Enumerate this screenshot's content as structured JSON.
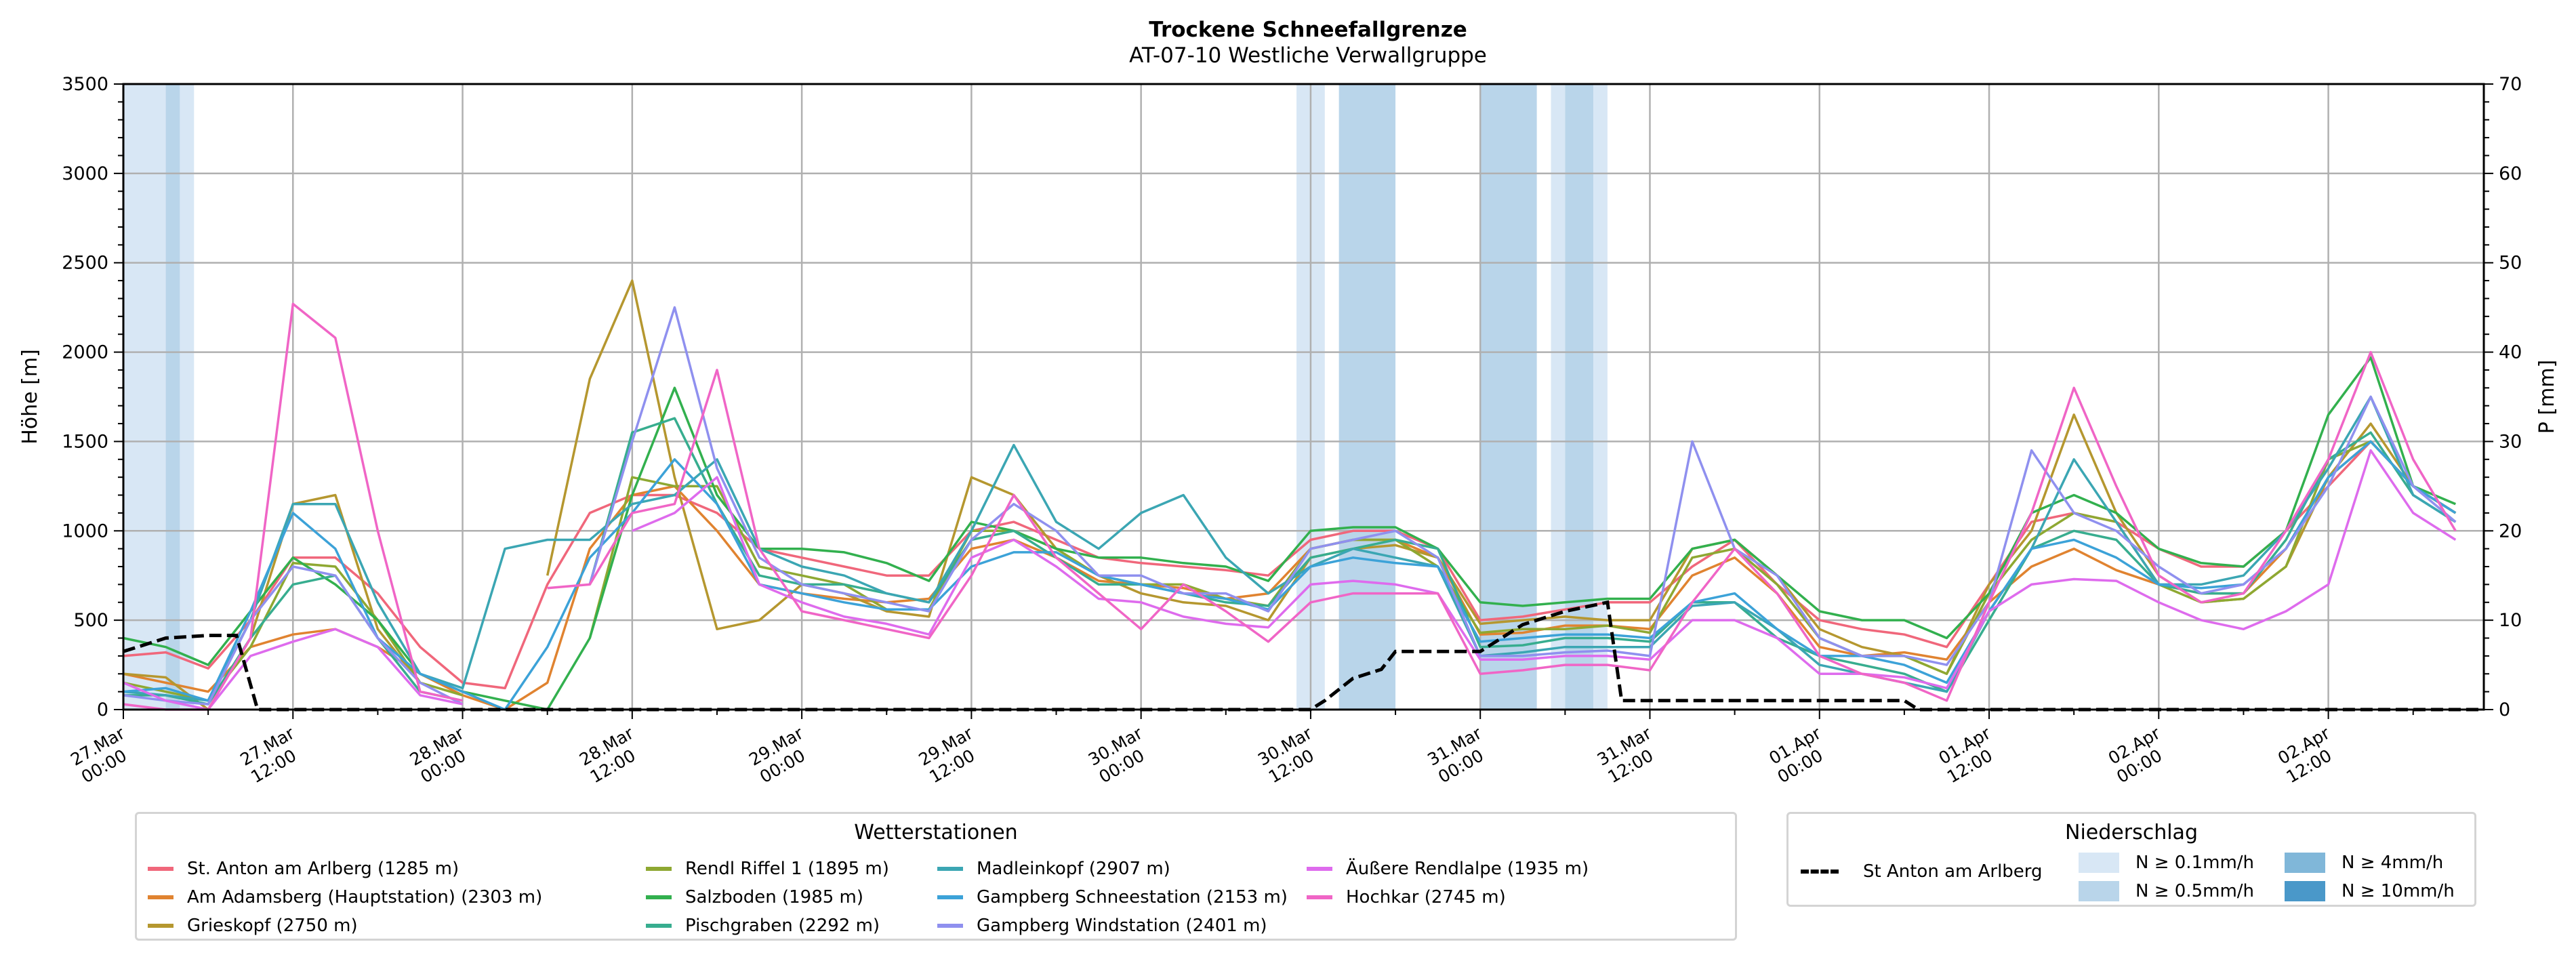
{
  "chart_data": {
    "type": "line",
    "title": "Trockene Schneefallgrenze",
    "subtitle": "AT-07-10 Westliche Verwallgruppe",
    "ylabel": "Höhe [m]",
    "ylabel_right": "P [mm]",
    "ylim": [
      0,
      3500
    ],
    "ylim_right": [
      0,
      70
    ],
    "yticks": [
      "0",
      "500",
      "1000",
      "1500",
      "2000",
      "2500",
      "3000",
      "3500"
    ],
    "yticks_right": [
      "0",
      "10",
      "20",
      "30",
      "40",
      "50",
      "60",
      "70"
    ],
    "grid": true,
    "x_unit": "hours since 27.Mar 00:00",
    "xlim": [
      0,
      167
    ],
    "x_step": 3,
    "xtick_labels": [
      [
        "27.Mar",
        "00:00"
      ],
      [
        "27.Mar",
        "12:00"
      ],
      [
        "28.Mar",
        "00:00"
      ],
      [
        "28.Mar",
        "12:00"
      ],
      [
        "29.Mar",
        "00:00"
      ],
      [
        "29.Mar",
        "12:00"
      ],
      [
        "30.Mar",
        "00:00"
      ],
      [
        "30.Mar",
        "12:00"
      ],
      [
        "31.Mar",
        "00:00"
      ],
      [
        "31.Mar",
        "12:00"
      ],
      [
        "01.Apr",
        "00:00"
      ],
      [
        "01.Apr",
        "12:00"
      ],
      [
        "02.Apr",
        "00:00"
      ],
      [
        "02.Apr",
        "12:00"
      ]
    ],
    "legend_title": "Wetterstationen",
    "legend_placement": "bottom-left",
    "series": [
      {
        "name": "St. Anton am Arlberg (1285 m)",
        "color": "#f0677b",
        "values": [
          300,
          320,
          230,
          500,
          850,
          850,
          650,
          350,
          150,
          120,
          700,
          1100,
          1200,
          1200,
          1100,
          900,
          850,
          800,
          750,
          750,
          1000,
          1050,
          950,
          850,
          820,
          800,
          780,
          750,
          950,
          1000,
          1000,
          900,
          500,
          520,
          560,
          600,
          600,
          800,
          950,
          700,
          500,
          450,
          420,
          350,
          700,
          1050,
          1100,
          1050,
          900,
          800,
          800,
          1000,
          1250,
          1500,
          1250,
          1100
        ]
      },
      {
        "name": "Am Adamsberg (Hauptstation) (2303 m)",
        "color": "#e08330",
        "values": [
          200,
          150,
          100,
          350,
          420,
          450,
          350,
          200,
          80,
          0,
          150,
          900,
          1200,
          1250,
          1000,
          700,
          650,
          620,
          600,
          620,
          900,
          950,
          850,
          720,
          700,
          680,
          620,
          650,
          900,
          950,
          950,
          850,
          420,
          430,
          470,
          470,
          450,
          750,
          850,
          650,
          350,
          300,
          320,
          280,
          600,
          800,
          900,
          780,
          700,
          650,
          650,
          900,
          1300,
          1500,
          1250,
          1100
        ]
      },
      {
        "name": "Grieskopf (2750 m)",
        "color": "#b5972f",
        "values": [
          200,
          180,
          0,
          400,
          1150,
          1200,
          450,
          150,
          null,
          null,
          750,
          1850,
          2400,
          1300,
          450,
          500,
          700,
          650,
          550,
          520,
          1300,
          1200,
          900,
          750,
          650,
          600,
          580,
          500,
          850,
          900,
          920,
          850,
          480,
          500,
          520,
          500,
          500,
          900,
          950,
          750,
          450,
          350,
          300,
          200,
          700,
          1000,
          1650,
          1100,
          750,
          600,
          620,
          800,
          1300,
          1600,
          1250,
          1100
        ]
      },
      {
        "name": "Rendl Riffel 1 (1895 m)",
        "color": "#8ea832",
        "values": [
          150,
          100,
          50,
          350,
          820,
          800,
          500,
          150,
          80,
          null,
          null,
          400,
          1300,
          1250,
          1250,
          800,
          750,
          700,
          560,
          560,
          1000,
          1000,
          900,
          750,
          700,
          700,
          620,
          580,
          900,
          950,
          950,
          800,
          430,
          450,
          450,
          470,
          430,
          850,
          900,
          700,
          400,
          300,
          300,
          200,
          650,
          950,
          1100,
          1050,
          700,
          600,
          620,
          800,
          1400,
          1500,
          1250,
          1100
        ]
      },
      {
        "name": "Salzboden (1985 m)",
        "color": "#32b04e",
        "values": [
          400,
          350,
          250,
          550,
          850,
          700,
          500,
          200,
          100,
          50,
          0,
          400,
          1200,
          1800,
          1200,
          900,
          900,
          880,
          820,
          720,
          1050,
          1000,
          900,
          850,
          850,
          820,
          800,
          720,
          1000,
          1020,
          1020,
          900,
          600,
          580,
          600,
          620,
          620,
          900,
          950,
          750,
          550,
          500,
          500,
          400,
          650,
          1100,
          1200,
          1100,
          900,
          820,
          800,
          1000,
          1650,
          1970,
          1250,
          1150
        ]
      },
      {
        "name": "Pischgraben (2292 m)",
        "color": "#37ad8f",
        "values": [
          80,
          80,
          30,
          400,
          700,
          750,
          400,
          100,
          50,
          null,
          null,
          700,
          1550,
          1630,
          1150,
          750,
          700,
          700,
          650,
          600,
          950,
          1000,
          850,
          700,
          700,
          650,
          600,
          580,
          850,
          900,
          950,
          900,
          350,
          360,
          400,
          400,
          380,
          600,
          600,
          400,
          300,
          250,
          200,
          100,
          500,
          900,
          1000,
          950,
          700,
          650,
          650,
          950,
          1400,
          1550,
          1200,
          1050
        ]
      },
      {
        "name": "Madleinkopf (2907 m)",
        "color": "#3ba6b3",
        "values": [
          100,
          80,
          50,
          500,
          1150,
          1150,
          600,
          200,
          120,
          900,
          950,
          950,
          1150,
          1200,
          1400,
          900,
          800,
          750,
          650,
          600,
          1000,
          1480,
          1050,
          900,
          1100,
          1200,
          850,
          650,
          800,
          900,
          850,
          800,
          300,
          320,
          350,
          350,
          350,
          580,
          600,
          450,
          250,
          200,
          150,
          100,
          550,
          900,
          1400,
          1050,
          700,
          700,
          750,
          1000,
          1350,
          1750,
          1200,
          1050
        ]
      },
      {
        "name": "Gampberg Schneestation (2153 m)",
        "color": "#3ca2d8",
        "values": [
          100,
          120,
          50,
          550,
          1100,
          900,
          400,
          200,
          100,
          0,
          350,
          850,
          1100,
          1400,
          1150,
          700,
          650,
          600,
          560,
          560,
          800,
          880,
          880,
          750,
          700,
          650,
          620,
          560,
          800,
          850,
          820,
          800,
          380,
          400,
          420,
          420,
          400,
          600,
          650,
          450,
          300,
          300,
          250,
          150,
          550,
          900,
          950,
          850,
          700,
          680,
          700,
          900,
          1300,
          1500,
          1250,
          1100
        ]
      },
      {
        "name": "Gampberg Windstation (2401 m)",
        "color": "#8f90ef",
        "values": [
          80,
          50,
          30,
          500,
          800,
          750,
          400,
          150,
          30,
          null,
          null,
          700,
          1500,
          2250,
          1350,
          850,
          700,
          650,
          600,
          550,
          950,
          1150,
          1000,
          750,
          750,
          650,
          650,
          550,
          900,
          950,
          1000,
          850,
          300,
          300,
          320,
          330,
          300,
          1500,
          900,
          750,
          400,
          300,
          300,
          250,
          600,
          1450,
          1100,
          1000,
          800,
          650,
          700,
          900,
          1250,
          1750,
          1250,
          1050
        ]
      },
      {
        "name": "Äußere Rendlalpe (1935 m)",
        "color": "#de6bed",
        "values": [
          150,
          50,
          0,
          300,
          380,
          450,
          350,
          80,
          30,
          null,
          null,
          null,
          1000,
          1100,
          1300,
          700,
          600,
          520,
          480,
          420,
          850,
          950,
          800,
          620,
          600,
          520,
          480,
          460,
          700,
          720,
          700,
          650,
          280,
          280,
          300,
          300,
          280,
          500,
          500,
          400,
          200,
          200,
          180,
          120,
          550,
          700,
          730,
          720,
          600,
          500,
          450,
          550,
          700,
          1450,
          1100,
          950
        ]
      },
      {
        "name": "Hochkar (2745 m)",
        "color": "#f065c6",
        "values": [
          30,
          0,
          0,
          400,
          2270,
          2080,
          1000,
          100,
          50,
          null,
          680,
          700,
          1100,
          1150,
          1900,
          900,
          550,
          500,
          450,
          400,
          750,
          1200,
          850,
          650,
          450,
          700,
          550,
          380,
          600,
          650,
          650,
          650,
          200,
          220,
          250,
          250,
          220,
          600,
          900,
          650,
          300,
          200,
          150,
          50,
          600,
          1100,
          1800,
          1250,
          750,
          600,
          650,
          1000,
          1400,
          2000,
          1400,
          1000
        ]
      }
    ],
    "precip_legend_title": "Niederschlag",
    "precip_line": {
      "name": "St Anton am Arlberg",
      "color": "#000000",
      "points": [
        [
          0,
          6.5
        ],
        [
          3,
          8
        ],
        [
          6,
          8.3
        ],
        [
          8,
          8.3
        ],
        [
          9.5,
          0
        ],
        [
          84,
          0
        ],
        [
          85,
          1
        ],
        [
          87,
          3.5
        ],
        [
          89,
          4.5
        ],
        [
          90,
          6.5
        ],
        [
          96,
          6.5
        ],
        [
          99,
          9.5
        ],
        [
          102,
          11
        ],
        [
          105,
          12
        ],
        [
          106,
          1
        ],
        [
          126,
          1
        ],
        [
          127,
          0
        ],
        [
          167,
          0
        ]
      ]
    },
    "precip_classes": [
      {
        "label": "N ≥ 0.1mm/h",
        "color": "#d8e7f5"
      },
      {
        "label": "N ≥ 0.5mm/h",
        "color": "#b9d5ea"
      },
      {
        "label": "N ≥ 4mm/h",
        "color": "#80b7d9"
      },
      {
        "label": "N ≥ 10mm/h",
        "color": "#4a98c9"
      }
    ],
    "precip_bands": [
      {
        "from": 0,
        "to": 3,
        "class": 0
      },
      {
        "from": 3,
        "to": 4,
        "class": 1
      },
      {
        "from": 4,
        "to": 5,
        "class": 0
      },
      {
        "from": 83,
        "to": 85,
        "class": 0
      },
      {
        "from": 86,
        "to": 90,
        "class": 1
      },
      {
        "from": 96,
        "to": 100,
        "class": 1
      },
      {
        "from": 101,
        "to": 102,
        "class": 0
      },
      {
        "from": 102,
        "to": 104,
        "class": 1
      },
      {
        "from": 104,
        "to": 105,
        "class": 0
      }
    ]
  }
}
